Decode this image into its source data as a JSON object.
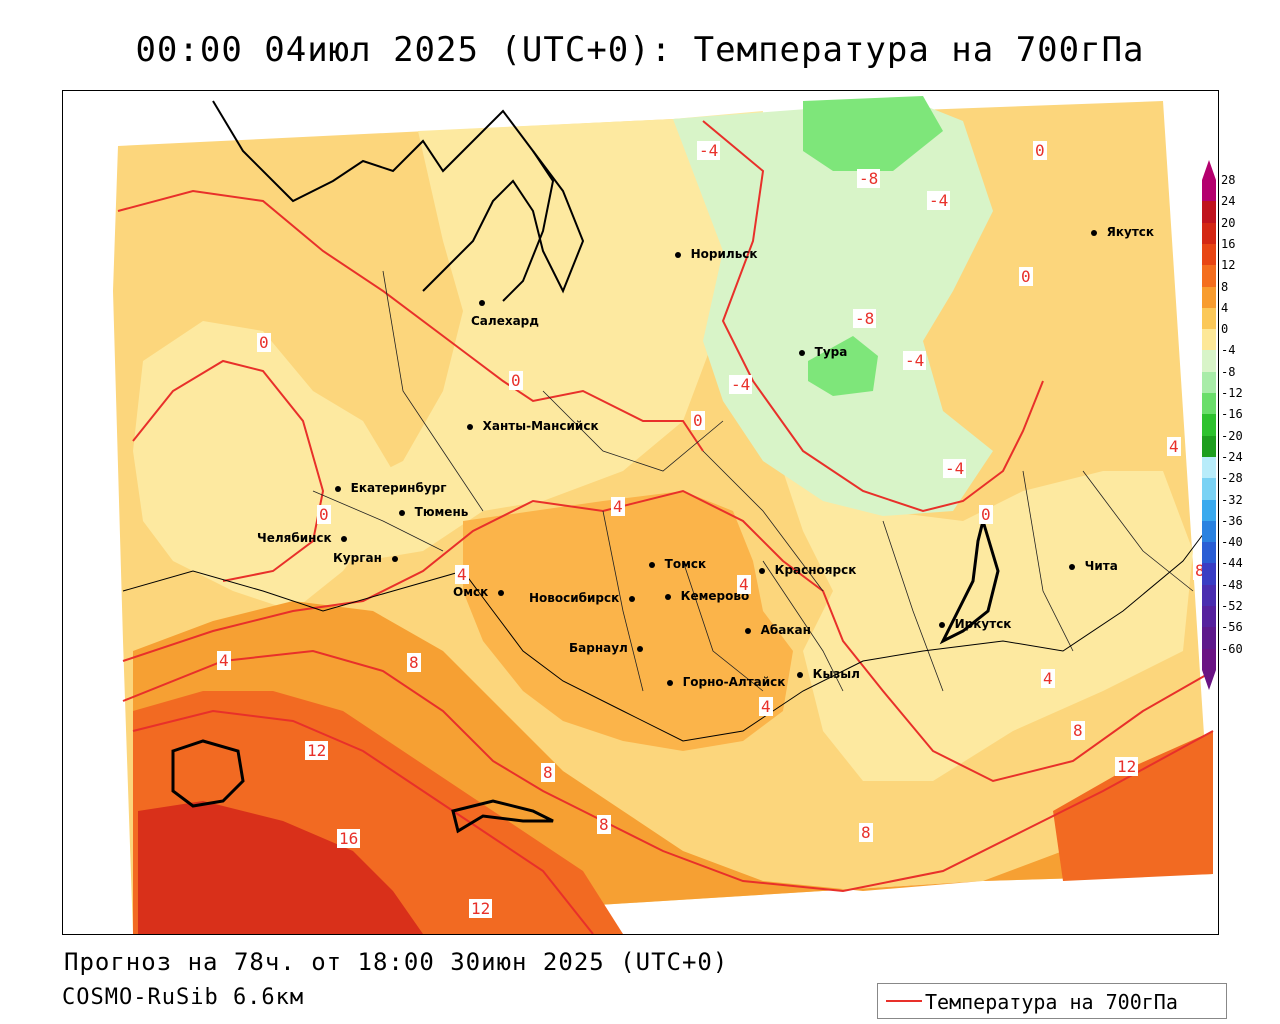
{
  "title": "00:00 04июл 2025 (UTC+0): Температура на 700гПа",
  "forecast_text": "Прогноз на 78ч. от 18:00 30июн 2025 (UTC+0)",
  "model_text": "COSMO-RuSib 6.6км",
  "legend": {
    "label": "Температура на 700гПа",
    "line_color": "#e8302a"
  },
  "colorbar": {
    "ticks": [
      "28",
      "24",
      "20",
      "16",
      "12",
      "8",
      "4",
      "0",
      "-4",
      "-8",
      "-12",
      "-16",
      "-20",
      "-24",
      "-28",
      "-32",
      "-36",
      "-40",
      "-44",
      "-48",
      "-52",
      "-56",
      "-60"
    ],
    "colors": [
      "#b4006e",
      "#c0141e",
      "#d42814",
      "#e84614",
      "#f46e1e",
      "#f89c2e",
      "#fbc858",
      "#fde898",
      "#d8f4c8",
      "#a8eca8",
      "#6ade6a",
      "#2ec22e",
      "#1e9e1e",
      "#b8ecfa",
      "#7ad2f4",
      "#3aaaee",
      "#2a82e0",
      "#2a5ed4",
      "#3a3ec4",
      "#4a2eb0",
      "#56229e",
      "#5e1a8c",
      "#6a1484"
    ]
  },
  "cities": [
    {
      "name": "Норильск"
    },
    {
      "name": "Якутск"
    },
    {
      "name": "Салехард"
    },
    {
      "name": "Тура"
    },
    {
      "name": "Ханты-Мансийск"
    },
    {
      "name": "Екатеринбург"
    },
    {
      "name": "Тюмень"
    },
    {
      "name": "Челябинск"
    },
    {
      "name": "Курган"
    },
    {
      "name": "Омск"
    },
    {
      "name": "Новосибирск"
    },
    {
      "name": "Томск"
    },
    {
      "name": "Кемерово"
    },
    {
      "name": "Красноярск"
    },
    {
      "name": "Абакан"
    },
    {
      "name": "Барнаул"
    },
    {
      "name": "Горно-Алтайск"
    },
    {
      "name": "Кызыл"
    },
    {
      "name": "Иркутск"
    },
    {
      "name": "Чита"
    }
  ],
  "contour_labels": [
    {
      "text": "-4"
    },
    {
      "text": "-8"
    },
    {
      "text": "0"
    },
    {
      "text": "-4"
    },
    {
      "text": "0"
    },
    {
      "text": "-8"
    },
    {
      "text": "-4"
    },
    {
      "text": "0"
    },
    {
      "text": "0"
    },
    {
      "text": "-4"
    },
    {
      "text": "0"
    },
    {
      "text": "-4"
    },
    {
      "text": "0"
    },
    {
      "text": "4"
    },
    {
      "text": "0"
    },
    {
      "text": "4"
    },
    {
      "text": "4"
    },
    {
      "text": "8"
    },
    {
      "text": "4"
    },
    {
      "text": "4"
    },
    {
      "text": "8"
    },
    {
      "text": "12"
    },
    {
      "text": "8"
    },
    {
      "text": "8"
    },
    {
      "text": "16"
    },
    {
      "text": "12"
    },
    {
      "text": "4"
    },
    {
      "text": "8"
    },
    {
      "text": "12"
    },
    {
      "text": "4"
    },
    {
      "text": "8"
    }
  ]
}
